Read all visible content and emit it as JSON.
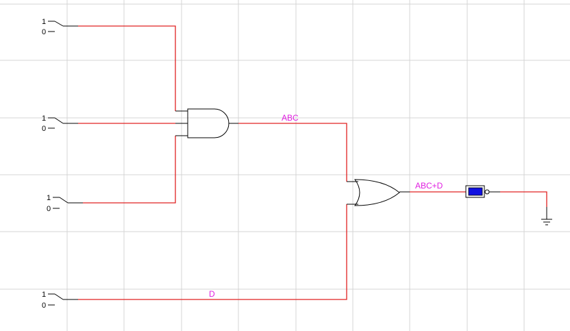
{
  "colors": {
    "wire": "#e02020",
    "net_label": "#e01ee0",
    "grid": "#d4d4d4",
    "probe": "#1010e0"
  },
  "switches": [
    {
      "high": "1",
      "low": "0"
    },
    {
      "high": "1",
      "low": "0"
    },
    {
      "high": "1",
      "low": "0"
    },
    {
      "high": "1",
      "low": "0"
    }
  ],
  "net_labels": {
    "and_output": "ABC",
    "or_output": "ABC+D",
    "d_input": "D"
  },
  "components": {
    "and_gate": "and-gate-icon",
    "or_gate": "or-gate-icon",
    "probe": "logic-probe-icon",
    "ground": "ground-icon"
  }
}
